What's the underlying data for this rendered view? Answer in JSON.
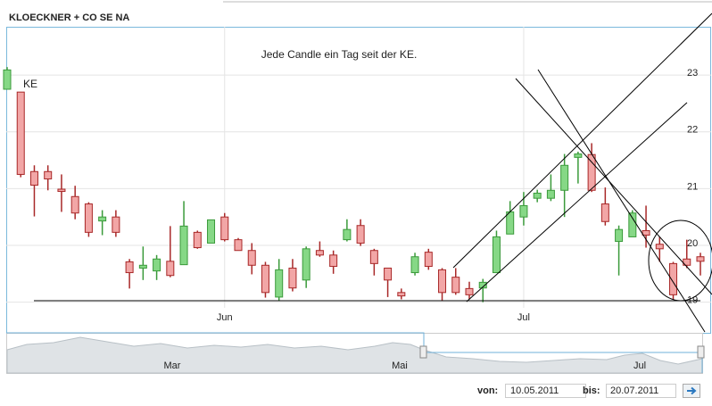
{
  "chart_data": {
    "type": "candlestick",
    "title": "KLOECKNER + CO SE NA",
    "annotations": [
      "Jede Candle ein Tag seit der KE.",
      "KE"
    ],
    "categories": [
      null,
      null,
      null,
      null,
      null,
      null,
      null,
      null,
      null,
      null,
      null,
      null,
      null,
      null,
      null,
      null,
      "Jun",
      null,
      null,
      null,
      null,
      null,
      null,
      null,
      null,
      null,
      null,
      null,
      null,
      null,
      null,
      null,
      null,
      null,
      null,
      null,
      null,
      null,
      "Jul",
      null,
      null,
      null,
      null,
      null,
      null,
      null,
      null,
      null,
      null,
      null,
      null,
      null
    ],
    "open": [
      22.75,
      22.7,
      21.3,
      21.3,
      20.99,
      20.86,
      20.73,
      20.43,
      20.5,
      19.71,
      19.6,
      19.55,
      19.72,
      19.66,
      20.23,
      20.04,
      20.5,
      20.1,
      19.91,
      19.65,
      19.09,
      19.6,
      19.39,
      19.91,
      19.83,
      20.1,
      20.35,
      19.91,
      19.6,
      19.17,
      19.52,
      19.88,
      19.57,
      19.44,
      19.24,
      19.25,
      19.52,
      20.2,
      20.5,
      20.83,
      20.83,
      20.97,
      21.55,
      21.6,
      20.73,
      20.07,
      20.15,
      20.26,
      20.02,
      19.68,
      19.76,
      19.8
    ],
    "high": [
      23.14,
      22.7,
      21.41,
      21.41,
      21.25,
      21.05,
      20.76,
      20.62,
      20.62,
      19.76,
      19.98,
      19.83,
      20.34,
      20.78,
      20.26,
      20.45,
      20.57,
      20.13,
      20.04,
      19.71,
      19.76,
      19.76,
      19.98,
      20.07,
      19.91,
      20.46,
      20.46,
      19.94,
      19.6,
      19.24,
      19.87,
      19.94,
      19.6,
      19.6,
      19.36,
      19.41,
      20.26,
      20.78,
      20.94,
      20.98,
      21.25,
      21.61,
      21.65,
      21.8,
      21.02,
      20.35,
      20.62,
      20.7,
      20.15,
      19.71,
      20.1,
      19.87
    ],
    "low": [
      22.75,
      21.2,
      20.51,
      20.97,
      20.59,
      20.46,
      20.15,
      20.18,
      20.15,
      19.24,
      19.39,
      19.39,
      19.44,
      19.66,
      19.94,
      20.04,
      20.07,
      19.91,
      19.49,
      19.08,
      19.02,
      19.19,
      19.25,
      19.8,
      19.5,
      20.07,
      19.99,
      19.47,
      19.09,
      19.05,
      19.47,
      19.57,
      19.03,
      19.13,
      19.05,
      19.0,
      19.52,
      20.2,
      20.35,
      20.76,
      20.78,
      20.5,
      21.09,
      20.94,
      20.35,
      19.47,
      20.15,
      19.96,
      19.71,
      19.05,
      19.6,
      19.47
    ],
    "close": [
      23.09,
      21.25,
      21.06,
      21.17,
      20.95,
      20.57,
      20.23,
      20.5,
      20.23,
      19.52,
      19.65,
      19.76,
      19.47,
      20.34,
      19.96,
      20.45,
      20.1,
      19.91,
      19.65,
      19.17,
      19.57,
      19.25,
      19.94,
      19.83,
      19.63,
      20.28,
      20.04,
      19.68,
      19.39,
      19.11,
      19.8,
      19.63,
      19.17,
      19.17,
      19.13,
      19.35,
      20.15,
      20.59,
      20.7,
      20.92,
      20.97,
      21.41,
      21.61,
      20.97,
      20.42,
      20.28,
      20.57,
      20.18,
      19.94,
      19.13,
      19.65,
      19.72
    ],
    "up_color": "#86d886",
    "down_color": "#f2a6a6",
    "ylim": [
      18.9,
      23.85
    ],
    "yticks": [
      19,
      20,
      21,
      22,
      23
    ],
    "grid": true
  },
  "navigator": {
    "labels": [
      "Mar",
      "Mai",
      "Jul"
    ]
  },
  "controls": {
    "from_label": "von:",
    "from_date": "10.05.2011",
    "to_label": "bis:",
    "to_date": "20.07.2011"
  }
}
